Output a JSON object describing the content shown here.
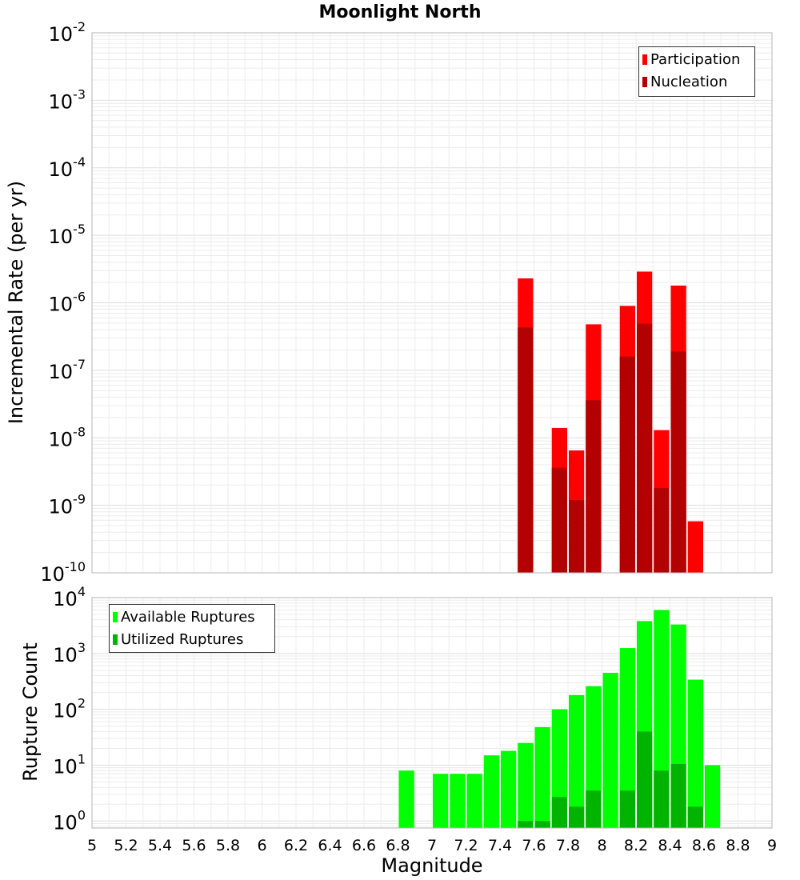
{
  "chart_data": [
    {
      "type": "bar",
      "title": "Moonlight North",
      "ylabel": "Incremental Rate (per yr)",
      "xlabel": "",
      "y_scale": "log",
      "xlim": [
        5,
        9
      ],
      "ylim": [
        1e-10,
        0.01
      ],
      "y_ticks": [
        {
          "base": "10",
          "exp": "-10"
        },
        {
          "base": "10",
          "exp": "-9"
        },
        {
          "base": "10",
          "exp": "-8"
        },
        {
          "base": "10",
          "exp": "-7"
        },
        {
          "base": "10",
          "exp": "-6"
        },
        {
          "base": "10",
          "exp": "-5"
        },
        {
          "base": "10",
          "exp": "-4"
        },
        {
          "base": "10",
          "exp": "-3"
        },
        {
          "base": "10",
          "exp": "-2"
        }
      ],
      "grid": true,
      "legend_position": "top-right",
      "series": [
        {
          "name": "Participation",
          "color": "#ff0000",
          "points": [
            {
              "x": 7.55,
              "y": 2.3e-06
            },
            {
              "x": 7.75,
              "y": 1.4e-08
            },
            {
              "x": 7.85,
              "y": 6.5e-09
            },
            {
              "x": 7.95,
              "y": 4.8e-07
            },
            {
              "x": 8.15,
              "y": 9e-07
            },
            {
              "x": 8.25,
              "y": 2.9e-06
            },
            {
              "x": 8.35,
              "y": 1.3e-08
            },
            {
              "x": 8.45,
              "y": 1.8e-06
            },
            {
              "x": 8.55,
              "y": 5.8e-10
            }
          ]
        },
        {
          "name": "Nucleation",
          "color": "#b30000",
          "points": [
            {
              "x": 7.55,
              "y": 4.3e-07
            },
            {
              "x": 7.75,
              "y": 3.6e-09
            },
            {
              "x": 7.85,
              "y": 1.2e-09
            },
            {
              "x": 7.95,
              "y": 3.6e-08
            },
            {
              "x": 8.15,
              "y": 1.6e-07
            },
            {
              "x": 8.25,
              "y": 4.9e-07
            },
            {
              "x": 8.35,
              "y": 1.8e-09
            },
            {
              "x": 8.45,
              "y": 1.9e-07
            }
          ]
        }
      ]
    },
    {
      "type": "bar",
      "title": "",
      "ylabel": "Rupture Count",
      "xlabel": "Magnitude",
      "y_scale": "log",
      "xlim": [
        5,
        9
      ],
      "ylim": [
        0.75,
        10000
      ],
      "x_ticks": [
        "5",
        "5.2",
        "5.4",
        "5.6",
        "5.8",
        "6",
        "6.2",
        "6.4",
        "6.6",
        "6.8",
        "7",
        "7.2",
        "7.4",
        "7.6",
        "7.8",
        "8",
        "8.2",
        "8.4",
        "8.6",
        "8.8",
        "9"
      ],
      "y_ticks": [
        {
          "base": "10",
          "exp": "0"
        },
        {
          "base": "10",
          "exp": "1"
        },
        {
          "base": "10",
          "exp": "2"
        },
        {
          "base": "10",
          "exp": "3"
        },
        {
          "base": "10",
          "exp": "4"
        }
      ],
      "grid": true,
      "legend_position": "top-left",
      "series": [
        {
          "name": "Available Ruptures",
          "color": "#00ff00",
          "points": [
            {
              "x": 6.85,
              "y": 8
            },
            {
              "x": 7.05,
              "y": 7
            },
            {
              "x": 7.15,
              "y": 7
            },
            {
              "x": 7.25,
              "y": 7
            },
            {
              "x": 7.35,
              "y": 15
            },
            {
              "x": 7.45,
              "y": 18
            },
            {
              "x": 7.55,
              "y": 25
            },
            {
              "x": 7.65,
              "y": 48
            },
            {
              "x": 7.75,
              "y": 100
            },
            {
              "x": 7.85,
              "y": 180
            },
            {
              "x": 7.95,
              "y": 260
            },
            {
              "x": 8.05,
              "y": 450
            },
            {
              "x": 8.15,
              "y": 1250
            },
            {
              "x": 8.25,
              "y": 3800
            },
            {
              "x": 8.35,
              "y": 6000
            },
            {
              "x": 8.45,
              "y": 3300
            },
            {
              "x": 8.55,
              "y": 340
            },
            {
              "x": 8.65,
              "y": 10
            }
          ]
        },
        {
          "name": "Utilized Ruptures",
          "color": "#00b300",
          "points": [
            {
              "x": 7.55,
              "y": 1
            },
            {
              "x": 7.65,
              "y": 1
            },
            {
              "x": 7.75,
              "y": 2.7
            },
            {
              "x": 7.85,
              "y": 1.8
            },
            {
              "x": 7.95,
              "y": 3.5
            },
            {
              "x": 8.15,
              "y": 3.5
            },
            {
              "x": 8.25,
              "y": 40
            },
            {
              "x": 8.35,
              "y": 8
            },
            {
              "x": 8.45,
              "y": 10.5
            },
            {
              "x": 8.55,
              "y": 1.8
            }
          ]
        }
      ]
    }
  ]
}
